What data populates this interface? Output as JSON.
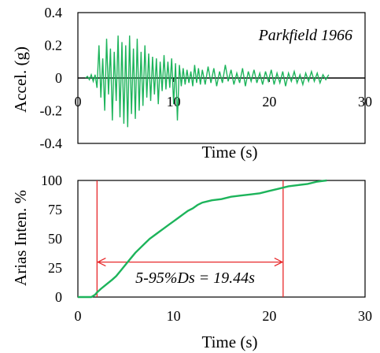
{
  "chart_data": [
    {
      "type": "line",
      "annotation": "Parkfield 1966",
      "xlabel": "Time  (s)",
      "ylabel": "Accel. (g)",
      "xlim": [
        0,
        30
      ],
      "ylim": [
        -0.4,
        0.4
      ],
      "x_ticks": [
        "0",
        "10",
        "20",
        "30"
      ],
      "y_ticks": [
        "0.4",
        "0.2",
        "0",
        "-0.2",
        "-0.4"
      ],
      "x_tick_values": [
        0,
        10,
        20,
        30
      ],
      "y_tick_values": [
        0.4,
        0.2,
        0,
        -0.2,
        -0.4
      ],
      "grid": false,
      "series": [
        {
          "color": "#1db45b",
          "x": [
            0.8,
            1.0,
            1.2,
            1.4,
            1.6,
            1.8,
            2.0,
            2.2,
            2.4,
            2.6,
            2.8,
            3.0,
            3.2,
            3.4,
            3.6,
            3.8,
            4.0,
            4.2,
            4.4,
            4.6,
            4.8,
            5.0,
            5.2,
            5.4,
            5.6,
            5.8,
            6.0,
            6.2,
            6.4,
            6.6,
            6.8,
            7.0,
            7.2,
            7.4,
            7.6,
            7.8,
            8.0,
            8.2,
            8.4,
            8.6,
            8.8,
            9.0,
            9.2,
            9.4,
            9.6,
            9.8,
            10.0,
            10.2,
            10.4,
            10.6,
            10.8,
            11.0,
            11.2,
            11.4,
            11.6,
            11.8,
            12.0,
            12.2,
            12.4,
            12.6,
            12.8,
            13.0,
            13.3,
            13.6,
            13.9,
            14.2,
            14.5,
            14.8,
            15.1,
            15.4,
            15.7,
            16.0,
            16.3,
            16.6,
            16.9,
            17.2,
            17.5,
            17.8,
            18.1,
            18.4,
            18.7,
            19.0,
            19.3,
            19.6,
            19.9,
            20.2,
            20.5,
            20.8,
            21.1,
            21.4,
            21.7,
            22.0,
            22.3,
            22.6,
            22.9,
            23.2,
            23.5,
            23.8,
            24.1,
            24.4,
            24.7,
            25.0,
            25.3,
            25.6,
            25.9,
            26.2
          ],
          "y": [
            0.0,
            0.01,
            -0.01,
            0.02,
            -0.02,
            0.02,
            -0.06,
            0.2,
            -0.12,
            0.12,
            -0.2,
            0.24,
            -0.1,
            0.18,
            -0.26,
            0.16,
            -0.14,
            0.26,
            -0.24,
            0.22,
            -0.28,
            0.2,
            -0.3,
            0.26,
            -0.22,
            0.18,
            -0.25,
            0.24,
            -0.2,
            0.16,
            -0.17,
            0.2,
            -0.12,
            0.15,
            -0.14,
            0.13,
            -0.1,
            0.12,
            -0.16,
            0.1,
            -0.08,
            0.14,
            -0.07,
            0.1,
            -0.06,
            0.12,
            -0.16,
            0.09,
            -0.26,
            0.08,
            -0.05,
            0.06,
            -0.04,
            0.05,
            -0.03,
            0.04,
            -0.05,
            0.08,
            -0.03,
            0.06,
            -0.04,
            0.05,
            -0.04,
            0.07,
            -0.03,
            0.06,
            -0.05,
            0.04,
            -0.03,
            0.08,
            -0.02,
            0.05,
            -0.04,
            0.03,
            -0.03,
            0.06,
            -0.05,
            0.04,
            -0.02,
            0.05,
            -0.03,
            0.03,
            -0.04,
            0.04,
            -0.02,
            0.05,
            -0.04,
            0.03,
            -0.03,
            0.04,
            -0.05,
            0.03,
            -0.02,
            0.04,
            -0.03,
            0.02,
            -0.04,
            0.03,
            -0.02,
            0.04,
            -0.02,
            0.03,
            -0.03,
            0.02,
            -0.01,
            0.02
          ]
        }
      ]
    },
    {
      "type": "line",
      "xlabel": "Time  (s)",
      "ylabel": "Arias Inten.  %",
      "xlim": [
        0,
        30
      ],
      "ylim": [
        0,
        100
      ],
      "x_ticks": [
        "0",
        "10",
        "20",
        "30"
      ],
      "y_ticks": [
        "100",
        "75",
        "50",
        "25",
        "0"
      ],
      "x_tick_values": [
        0,
        10,
        20,
        30
      ],
      "y_tick_values": [
        100,
        75,
        50,
        25,
        0
      ],
      "grid": false,
      "series": [
        {
          "color": "#1db45b",
          "x": [
            0,
            1.4,
            1.8,
            2.0,
            2.4,
            3.0,
            3.6,
            4.0,
            4.5,
            5.0,
            5.5,
            6.0,
            6.5,
            7.0,
            7.5,
            8.0,
            8.5,
            9.0,
            9.5,
            10.0,
            10.5,
            11.0,
            11.5,
            12.0,
            12.5,
            13.0,
            14.0,
            15.0,
            16.0,
            17.0,
            18.0,
            19.0,
            20.0,
            21.0,
            22.0,
            23.0,
            24.0,
            25.0,
            26.0
          ],
          "y": [
            0,
            0,
            2,
            4,
            7,
            11,
            15,
            18,
            23,
            28,
            33,
            38,
            42,
            46,
            50,
            53,
            56,
            59,
            62,
            65,
            68,
            71,
            74,
            76,
            79,
            81,
            83,
            84,
            86,
            87,
            88,
            89,
            91,
            93,
            95,
            96,
            97,
            99,
            100
          ]
        }
      ],
      "markers": {
        "x_start": 2.0,
        "x_end": 21.44,
        "color": "#e8282a"
      },
      "annotation": "5-95%Ds = 19.44s"
    }
  ]
}
